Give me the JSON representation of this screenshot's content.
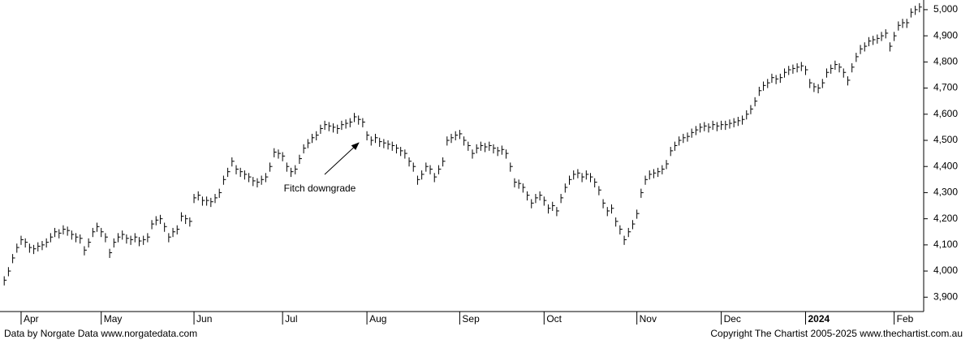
{
  "chart_data": {
    "type": "ohlc",
    "color": "#000000",
    "annotation": "Fitch downgrade",
    "footer_left": "Data by Norgate Data  www.norgatedata.com",
    "footer_right": "Copyright The Chartist 2005-2025  www.thechartist.com.au",
    "xlim": [
      -1,
      218
    ],
    "xticks": [
      {
        "value": 4,
        "label": "Apr"
      },
      {
        "value": 23,
        "label": "May"
      },
      {
        "value": 45,
        "label": "Jun"
      },
      {
        "value": 66,
        "label": "Jul"
      },
      {
        "value": 86,
        "label": "Aug"
      },
      {
        "value": 108,
        "label": "Sep"
      },
      {
        "value": 128,
        "label": "Oct"
      },
      {
        "value": 150,
        "label": "Nov"
      },
      {
        "value": 170,
        "label": "Dec"
      },
      {
        "value": 190,
        "label": "2024"
      },
      {
        "value": 211,
        "label": "Feb"
      }
    ],
    "ylim": [
      3845,
      5037
    ],
    "yticks": [
      {
        "value": 3900,
        "label": "3,900"
      },
      {
        "value": 4000,
        "label": "4,000"
      },
      {
        "value": 4100,
        "label": "4,100"
      },
      {
        "value": 4200,
        "label": "4,200"
      },
      {
        "value": 4300,
        "label": "4,300"
      },
      {
        "value": 4400,
        "label": "4,400"
      },
      {
        "value": 4500,
        "label": "4,500"
      },
      {
        "value": 4600,
        "label": "4,600"
      },
      {
        "value": 4700,
        "label": "4,700"
      },
      {
        "value": 4800,
        "label": "4,800"
      },
      {
        "value": 4900,
        "label": "4,900"
      },
      {
        "value": 5000,
        "label": "5,000"
      }
    ],
    "high": [
      3980,
      4015,
      4065,
      4105,
      4135,
      4125,
      4105,
      4100,
      4110,
      4115,
      4125,
      4145,
      4165,
      4160,
      4175,
      4170,
      4155,
      4145,
      4140,
      4095,
      4125,
      4165,
      4185,
      4165,
      4145,
      4085,
      4125,
      4145,
      4155,
      4140,
      4135,
      4145,
      4130,
      4135,
      4145,
      4195,
      4210,
      4215,
      4185,
      4145,
      4165,
      4175,
      4225,
      4215,
      4205,
      4295,
      4305,
      4285,
      4285,
      4280,
      4295,
      4315,
      4365,
      4395,
      4435,
      4405,
      4395,
      4385,
      4375,
      4360,
      4355,
      4365,
      4375,
      4415,
      4470,
      4465,
      4455,
      4415,
      4395,
      4405,
      4445,
      4485,
      4505,
      4525,
      4535,
      4560,
      4575,
      4570,
      4565,
      4560,
      4575,
      4580,
      4585,
      4605,
      4595,
      4585,
      4535,
      4515,
      4525,
      4510,
      4505,
      4500,
      4495,
      4485,
      4475,
      4465,
      4435,
      4415,
      4365,
      4385,
      4415,
      4405,
      4375,
      4405,
      4435,
      4515,
      4525,
      4535,
      4540,
      4515,
      4495,
      4465,
      4485,
      4495,
      4490,
      4495,
      4485,
      4475,
      4480,
      4465,
      4415,
      4355,
      4350,
      4335,
      4305,
      4275,
      4295,
      4305,
      4285,
      4255,
      4265,
      4245,
      4295,
      4335,
      4365,
      4385,
      4390,
      4375,
      4385,
      4375,
      4355,
      4325,
      4275,
      4245,
      4255,
      4205,
      4175,
      4135,
      4165,
      4195,
      4235,
      4315,
      4365,
      4385,
      4390,
      4395,
      4405,
      4425,
      4475,
      4495,
      4515,
      4525,
      4530,
      4545,
      4555,
      4565,
      4570,
      4565,
      4575,
      4570,
      4575,
      4575,
      4580,
      4585,
      4590,
      4595,
      4615,
      4635,
      4665,
      4705,
      4725,
      4735,
      4755,
      4750,
      4755,
      4775,
      4785,
      4790,
      4795,
      4800,
      4785,
      4735,
      4720,
      4715,
      4735,
      4775,
      4790,
      4805,
      4795,
      4775,
      4745,
      4795,
      4835,
      4865,
      4875,
      4895,
      4900,
      4905,
      4915,
      4925,
      4875,
      4915,
      4955,
      4965,
      4965,
      5005,
      5015,
      5025
    ],
    "low": [
      3945,
      3980,
      4030,
      4070,
      4100,
      4090,
      4070,
      4065,
      4075,
      4080,
      4090,
      4110,
      4130,
      4125,
      4140,
      4135,
      4120,
      4110,
      4105,
      4060,
      4090,
      4130,
      4150,
      4130,
      4110,
      4050,
      4090,
      4110,
      4120,
      4105,
      4100,
      4110,
      4095,
      4100,
      4110,
      4160,
      4175,
      4180,
      4150,
      4110,
      4130,
      4140,
      4190,
      4180,
      4170,
      4260,
      4270,
      4250,
      4250,
      4245,
      4260,
      4280,
      4330,
      4360,
      4400,
      4370,
      4360,
      4350,
      4340,
      4325,
      4320,
      4330,
      4340,
      4380,
      4435,
      4430,
      4420,
      4380,
      4360,
      4370,
      4410,
      4450,
      4470,
      4490,
      4500,
      4525,
      4540,
      4535,
      4530,
      4525,
      4540,
      4545,
      4550,
      4570,
      4560,
      4550,
      4500,
      4480,
      4490,
      4475,
      4470,
      4465,
      4460,
      4450,
      4440,
      4430,
      4400,
      4380,
      4330,
      4350,
      4380,
      4370,
      4340,
      4370,
      4400,
      4480,
      4490,
      4500,
      4505,
      4480,
      4460,
      4430,
      4450,
      4460,
      4455,
      4460,
      4450,
      4440,
      4445,
      4430,
      4380,
      4320,
      4315,
      4300,
      4270,
      4240,
      4260,
      4270,
      4250,
      4220,
      4230,
      4210,
      4260,
      4300,
      4330,
      4350,
      4355,
      4340,
      4350,
      4340,
      4320,
      4290,
      4240,
      4210,
      4220,
      4170,
      4140,
      4100,
      4130,
      4160,
      4200,
      4280,
      4330,
      4350,
      4355,
      4360,
      4370,
      4390,
      4440,
      4460,
      4480,
      4490,
      4495,
      4510,
      4520,
      4530,
      4535,
      4530,
      4540,
      4535,
      4540,
      4540,
      4545,
      4550,
      4555,
      4560,
      4580,
      4600,
      4630,
      4670,
      4690,
      4700,
      4720,
      4715,
      4720,
      4740,
      4750,
      4755,
      4760,
      4765,
      4750,
      4700,
      4685,
      4680,
      4700,
      4740,
      4755,
      4770,
      4760,
      4740,
      4710,
      4760,
      4800,
      4830,
      4840,
      4860,
      4865,
      4870,
      4880,
      4890,
      4840,
      4880,
      4920,
      4930,
      4930,
      4970,
      4980,
      4990
    ],
    "close": [
      3965,
      4000,
      4050,
      4090,
      4120,
      4110,
      4090,
      4085,
      4095,
      4100,
      4110,
      4130,
      4150,
      4145,
      4160,
      4155,
      4140,
      4130,
      4125,
      4080,
      4110,
      4150,
      4170,
      4150,
      4130,
      4070,
      4110,
      4130,
      4140,
      4125,
      4120,
      4130,
      4115,
      4120,
      4130,
      4180,
      4195,
      4200,
      4170,
      4130,
      4150,
      4160,
      4210,
      4200,
      4190,
      4280,
      4290,
      4270,
      4270,
      4265,
      4280,
      4300,
      4350,
      4380,
      4420,
      4390,
      4380,
      4370,
      4360,
      4345,
      4340,
      4350,
      4360,
      4400,
      4455,
      4450,
      4440,
      4400,
      4380,
      4390,
      4430,
      4470,
      4490,
      4510,
      4520,
      4545,
      4560,
      4555,
      4550,
      4545,
      4560,
      4565,
      4570,
      4590,
      4580,
      4570,
      4520,
      4500,
      4510,
      4495,
      4490,
      4485,
      4480,
      4470,
      4460,
      4450,
      4420,
      4400,
      4350,
      4370,
      4400,
      4390,
      4360,
      4390,
      4420,
      4500,
      4510,
      4520,
      4525,
      4500,
      4480,
      4450,
      4470,
      4480,
      4475,
      4480,
      4470,
      4460,
      4465,
      4450,
      4400,
      4340,
      4335,
      4320,
      4290,
      4260,
      4280,
      4290,
      4270,
      4240,
      4250,
      4230,
      4280,
      4320,
      4350,
      4370,
      4375,
      4360,
      4370,
      4360,
      4340,
      4310,
      4260,
      4230,
      4240,
      4190,
      4160,
      4120,
      4150,
      4180,
      4220,
      4300,
      4350,
      4370,
      4375,
      4380,
      4390,
      4410,
      4460,
      4480,
      4500,
      4510,
      4515,
      4530,
      4540,
      4550,
      4555,
      4550,
      4560,
      4555,
      4560,
      4560,
      4565,
      4570,
      4575,
      4580,
      4600,
      4620,
      4650,
      4690,
      4710,
      4720,
      4740,
      4735,
      4740,
      4760,
      4770,
      4775,
      4780,
      4785,
      4770,
      4720,
      4705,
      4700,
      4720,
      4760,
      4775,
      4790,
      4780,
      4760,
      4730,
      4780,
      4820,
      4850,
      4860,
      4880,
      4885,
      4890,
      4900,
      4910,
      4860,
      4900,
      4940,
      4950,
      4950,
      4990,
      5000,
      5010
    ]
  }
}
